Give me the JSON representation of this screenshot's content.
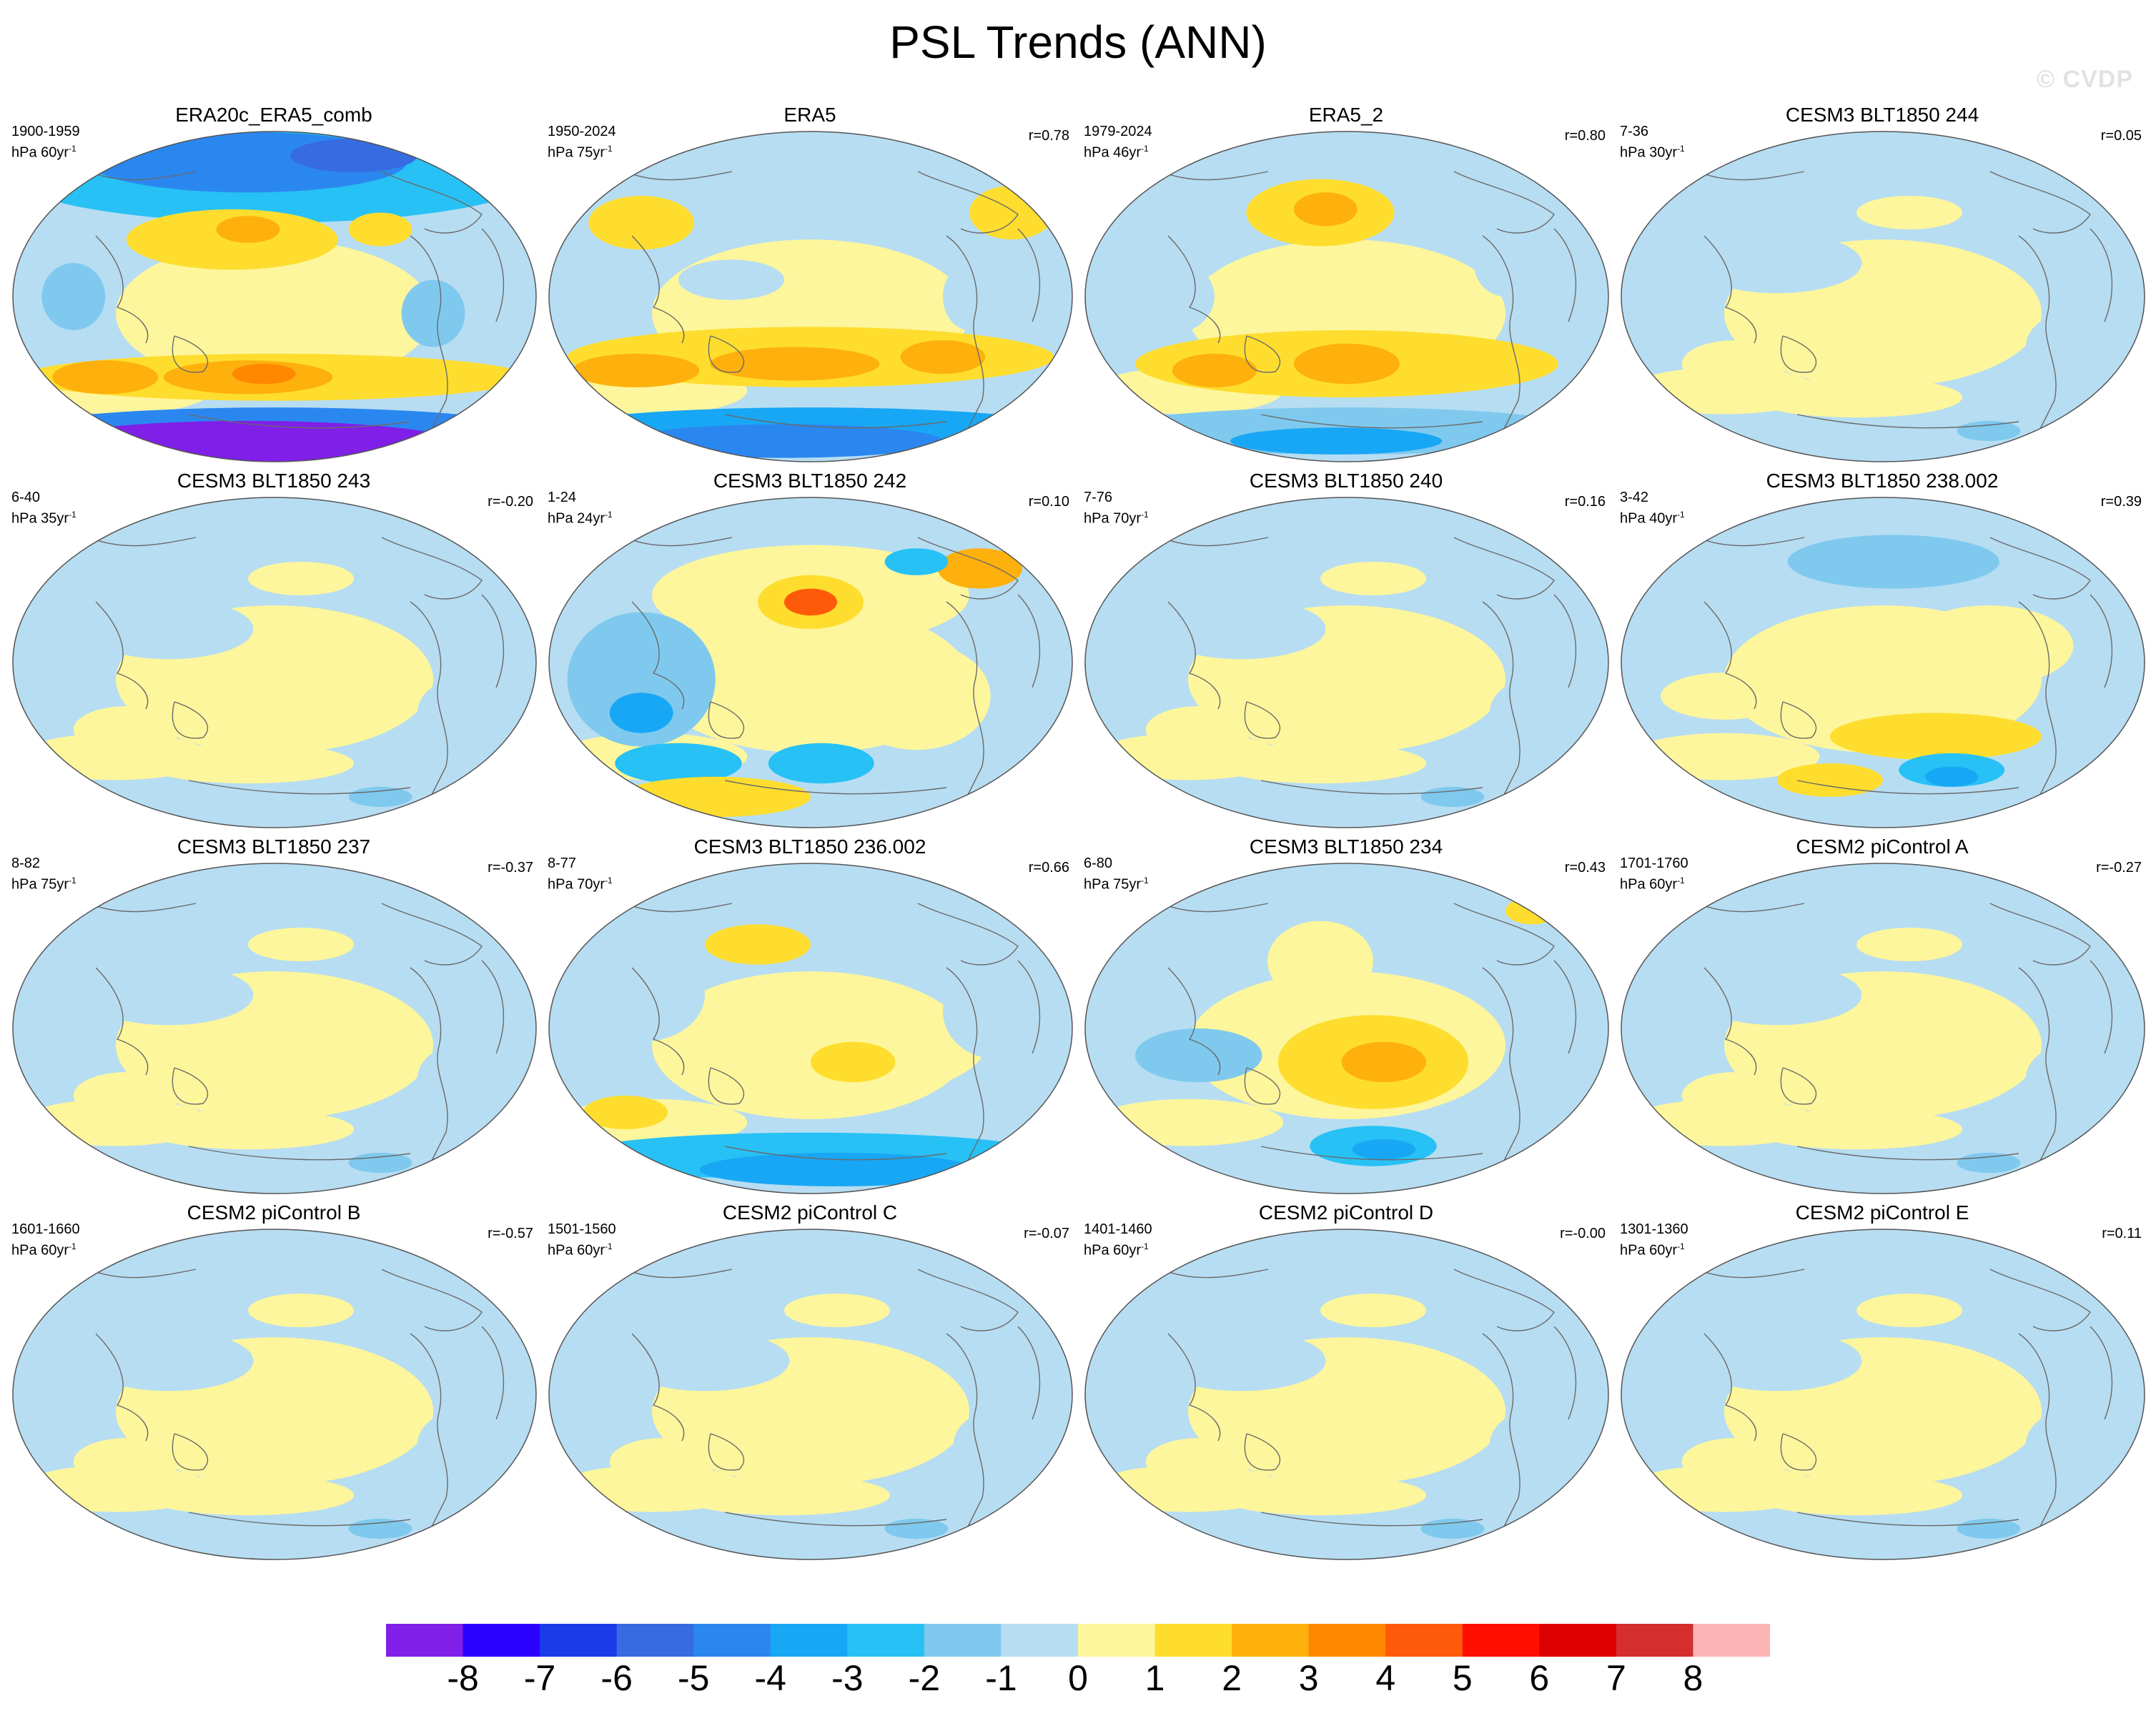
{
  "title": "PSL Trends (ANN)",
  "watermark": "© CVDP",
  "colorbar": {
    "colors": [
      "#7f1fe8",
      "#2a00ff",
      "#1b3be9",
      "#376be0",
      "#2b87f0",
      "#18a7f5",
      "#27c1f5",
      "#7fc9ee",
      "#b7ddf2",
      "#fdf69c",
      "#fedd2e",
      "#feb00c",
      "#ff8800",
      "#ff5a0a",
      "#ff0f00",
      "#dd0000",
      "#d42e2e",
      "#fdb4b4"
    ],
    "ticks": [
      "-8",
      "-7",
      "-6",
      "-5",
      "-4",
      "-3",
      "-2",
      "-1",
      "0",
      "1",
      "2",
      "3",
      "4",
      "5",
      "6",
      "7",
      "8"
    ]
  },
  "panels": [
    {
      "title": "ERA20c_ERA5_comb",
      "years": "1900-1959",
      "units": "hPa 60yr",
      "corr": "",
      "pattern": "era20c"
    },
    {
      "title": "ERA5",
      "years": "1950-2024",
      "units": "hPa 75yr",
      "corr": "r=0.78",
      "pattern": "era5"
    },
    {
      "title": "ERA5_2",
      "years": "1979-2024",
      "units": "hPa 46yr",
      "corr": "r=0.80",
      "pattern": "era5b"
    },
    {
      "title": "CESM3 BLT1850 244",
      "years": "7-36",
      "units": "hPa 30yr",
      "corr": "r=0.05",
      "pattern": "weak"
    },
    {
      "title": "CESM3 BLT1850 243",
      "years": "6-40",
      "units": "hPa 35yr",
      "corr": "r=-0.20",
      "pattern": "weak"
    },
    {
      "title": "CESM3 BLT1850 242",
      "years": "1-24",
      "units": "hPa 24yr",
      "corr": "r=0.10",
      "pattern": "m242"
    },
    {
      "title": "CESM3 BLT1850 240",
      "years": "7-76",
      "units": "hPa 70yr",
      "corr": "r=0.16",
      "pattern": "weak"
    },
    {
      "title": "CESM3 BLT1850 238.002",
      "years": "3-42",
      "units": "hPa 40yr",
      "corr": "r=0.39",
      "pattern": "m238"
    },
    {
      "title": "CESM3 BLT1850 237",
      "years": "8-82",
      "units": "hPa 75yr",
      "corr": "r=-0.37",
      "pattern": "weak"
    },
    {
      "title": "CESM3 BLT1850 236.002",
      "years": "8-77",
      "units": "hPa 70yr",
      "corr": "r=0.66",
      "pattern": "m236"
    },
    {
      "title": "CESM3 BLT1850 234",
      "years": "6-80",
      "units": "hPa 75yr",
      "corr": "r=0.43",
      "pattern": "m234"
    },
    {
      "title": "CESM2 piControl A",
      "years": "1701-1760",
      "units": "hPa 60yr",
      "corr": "r=-0.27",
      "pattern": "weak"
    },
    {
      "title": "CESM2 piControl B",
      "years": "1601-1660",
      "units": "hPa 60yr",
      "corr": "r=-0.57",
      "pattern": "weak"
    },
    {
      "title": "CESM2 piControl C",
      "years": "1501-1560",
      "units": "hPa 60yr",
      "corr": "r=-0.07",
      "pattern": "weak"
    },
    {
      "title": "CESM2 piControl D",
      "years": "1401-1460",
      "units": "hPa 60yr",
      "corr": "r=-0.00",
      "pattern": "weak"
    },
    {
      "title": "CESM2 piControl E",
      "years": "1301-1360",
      "units": "hPa 60yr",
      "corr": "r=0.11",
      "pattern": "weak"
    }
  ]
}
